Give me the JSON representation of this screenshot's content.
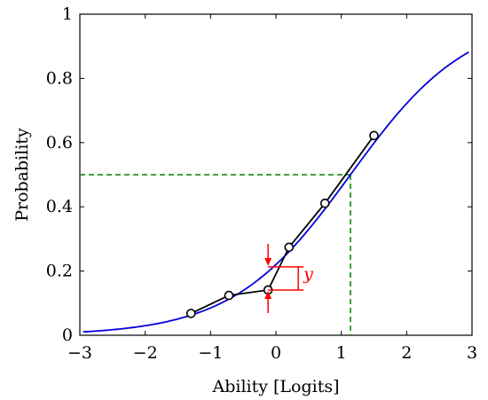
{
  "chart_data": {
    "type": "line",
    "xlabel": "Ability [Logits]",
    "ylabel": "Probability",
    "xlim": [
      -3,
      3
    ],
    "ylim": [
      0,
      1
    ],
    "x_ticks": [
      -3,
      -2,
      -1,
      0,
      1,
      2,
      3
    ],
    "y_ticks": [
      0,
      0.2,
      0.4,
      0.6,
      0.8,
      1
    ],
    "x_tick_labels": [
      "−3",
      "−2",
      "−1",
      "0",
      "1",
      "2",
      "3"
    ],
    "y_tick_labels": [
      "0",
      "0.2",
      "0.4",
      "0.6",
      "0.8",
      "1"
    ],
    "grid": false,
    "curve": {
      "kind": "logistic",
      "x_range": [
        -2.95,
        2.95
      ],
      "color": "#0000dd",
      "function": "y = 1 / (1 + exp(-1.11 * (x - 1.14)))"
    },
    "series": [
      {
        "color": "#000000",
        "marker": "circle",
        "x": [
          -1.3,
          -0.72,
          -0.12,
          0.2,
          0.75,
          1.5
        ],
        "y": [
          0.068,
          0.124,
          0.141,
          0.274,
          0.411,
          0.622
        ]
      }
    ],
    "reference_lines": {
      "color": "#008000",
      "style": "dashed",
      "y_level": 0.5,
      "x_level": 1.14
    },
    "annotation": {
      "label": "y",
      "color": "#ff0000",
      "x": -0.12,
      "y_from": 0.141,
      "y_to": 0.213
    }
  }
}
